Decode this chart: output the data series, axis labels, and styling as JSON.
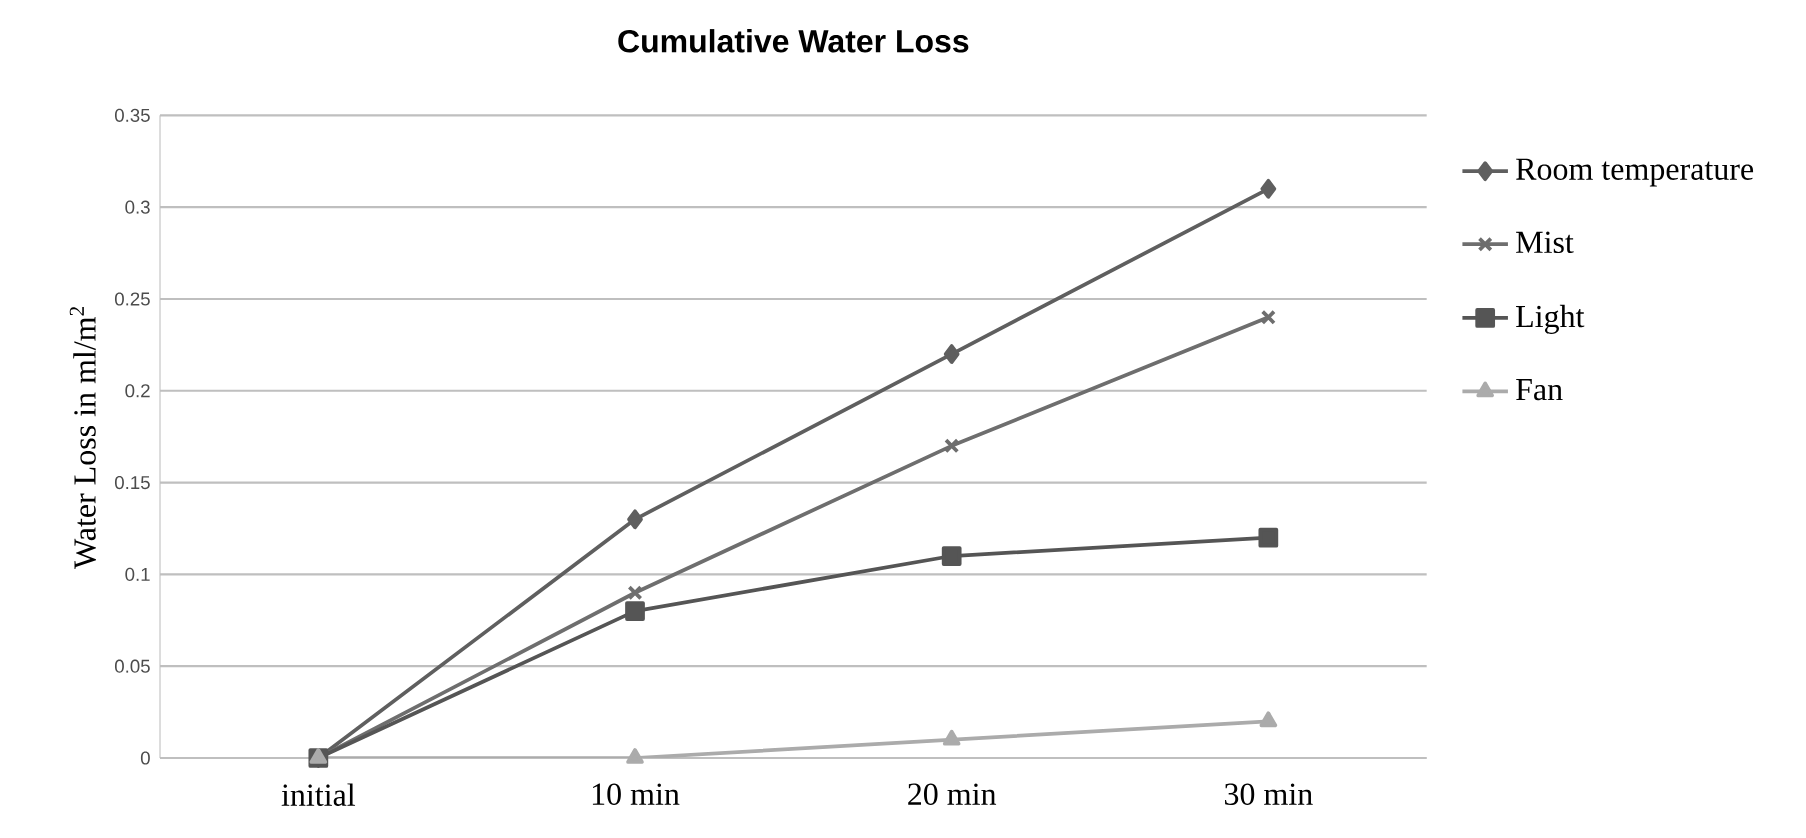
{
  "chart_data": {
    "type": "line",
    "title": "Cumulative Water Loss",
    "ylabel": "Water Loss in ml/m$^{2}$",
    "categories": [
      "initial",
      "10 min",
      "20 min",
      "30 min"
    ],
    "series": [
      {
        "name": "Room temperature",
        "color": "#5f5f5f",
        "marker": "diamond",
        "values": [
          0,
          0.13,
          0.22,
          0.31
        ]
      },
      {
        "name": "Mist",
        "color": "#6e6e6e",
        "marker": "cross",
        "values": [
          0,
          0.09,
          0.17,
          0.24
        ]
      },
      {
        "name": "Light",
        "color": "#555555",
        "marker": "square",
        "values": [
          0,
          0.08,
          0.11,
          0.12
        ]
      },
      {
        "name": "Fan",
        "color": "#ababab",
        "marker": "triangle",
        "values": [
          0,
          0,
          0.01,
          0.02
        ]
      }
    ],
    "ylim": [
      0,
      0.35
    ],
    "yticks": [
      0,
      0.05,
      0.1,
      0.15,
      0.2,
      0.25,
      0.3,
      0.35
    ],
    "grid": "y",
    "legend": "right",
    "line_style": "solid"
  }
}
